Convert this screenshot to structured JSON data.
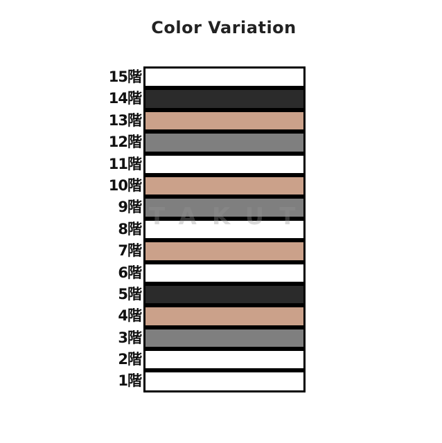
{
  "title": "Color Variation",
  "watermark": "TAKUT",
  "floors": [
    {
      "label": "15階",
      "color": "#ffffff"
    },
    {
      "label": "14階",
      "color": "#2b2b2b"
    },
    {
      "label": "13階",
      "color": "#cba18a"
    },
    {
      "label": "12階",
      "color": "#7f7f7f"
    },
    {
      "label": "11階",
      "color": "#ffffff"
    },
    {
      "label": "10階",
      "color": "#cba18a"
    },
    {
      "label": "9階",
      "color": "#7f7f7f"
    },
    {
      "label": "8階",
      "color": "#ffffff"
    },
    {
      "label": "7階",
      "color": "#cba18a"
    },
    {
      "label": "6階",
      "color": "#ffffff"
    },
    {
      "label": "5階",
      "color": "#2b2b2b"
    },
    {
      "label": "4階",
      "color": "#cba18a"
    },
    {
      "label": "3階",
      "color": "#7f7f7f"
    },
    {
      "label": "2階",
      "color": "#ffffff"
    },
    {
      "label": "1階",
      "color": "#ffffff"
    }
  ]
}
